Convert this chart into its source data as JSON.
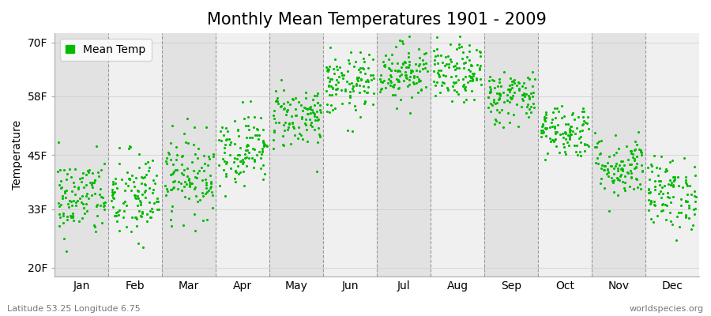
{
  "title": "Monthly Mean Temperatures 1901 - 2009",
  "ylabel": "Temperature",
  "yticks": [
    20,
    33,
    45,
    58,
    70
  ],
  "ytick_labels": [
    "20F",
    "33F",
    "45F",
    "58F",
    "70F"
  ],
  "ylim": [
    18,
    72
  ],
  "months": [
    "Jan",
    "Feb",
    "Mar",
    "Apr",
    "May",
    "Jun",
    "Jul",
    "Aug",
    "Sep",
    "Oct",
    "Nov",
    "Dec"
  ],
  "dot_color": "#00bb00",
  "bg_color_light": "#f0f0f0",
  "bg_color_dark": "#e2e2e2",
  "fig_color": "#ffffff",
  "legend_label": "Mean Temp",
  "footer_left": "Latitude 53.25 Longitude 6.75",
  "footer_right": "worldspecies.org",
  "title_fontsize": 15,
  "axis_fontsize": 10,
  "footer_fontsize": 8,
  "monthly_mean_temps_F": [
    35.5,
    35.5,
    40.5,
    46.5,
    53.5,
    60.5,
    63.5,
    63.0,
    58.0,
    50.5,
    42.5,
    36.5
  ],
  "monthly_std_temps_F": [
    4.5,
    5.2,
    4.5,
    4.0,
    3.5,
    3.5,
    3.2,
    3.2,
    3.0,
    3.0,
    3.5,
    4.0
  ],
  "n_years": 109,
  "seed": 42
}
